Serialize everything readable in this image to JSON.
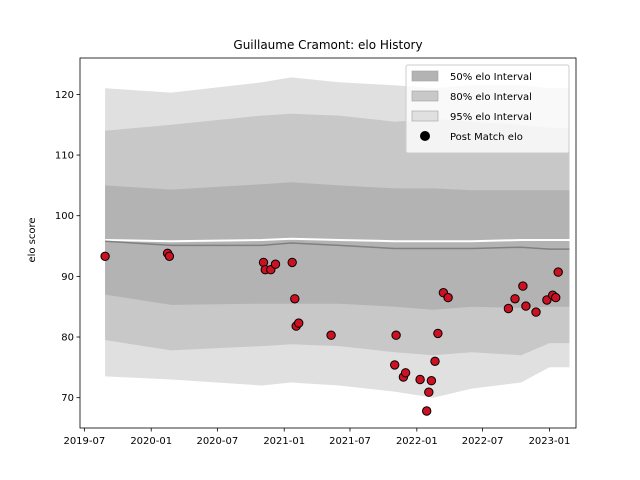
{
  "chart_data": {
    "type": "area",
    "title": "Guillaume Cramont: elo History",
    "xlabel": "",
    "ylabel": "elo score",
    "x_type": "date",
    "xlim": [
      "2019-06-19",
      "2023-03-15"
    ],
    "ylim": [
      65,
      126
    ],
    "x_ticks": [
      {
        "date": "2019-07-01",
        "label": "2019-07"
      },
      {
        "date": "2020-01-01",
        "label": "2020-01"
      },
      {
        "date": "2020-07-01",
        "label": "2020-07"
      },
      {
        "date": "2021-01-01",
        "label": "2021-01"
      },
      {
        "date": "2021-07-01",
        "label": "2021-07"
      },
      {
        "date": "2022-01-01",
        "label": "2022-01"
      },
      {
        "date": "2022-07-01",
        "label": "2022-07"
      },
      {
        "date": "2023-01-01",
        "label": "2023-01"
      }
    ],
    "y_ticks": [
      70,
      80,
      90,
      100,
      110,
      120
    ],
    "grid": false,
    "legend": {
      "position": "top-right",
      "entries": [
        {
          "label": "50% elo Interval",
          "color": "#b3b3b3",
          "kind": "patch"
        },
        {
          "label": "80% elo Interval",
          "color": "#c8c8c8",
          "kind": "patch"
        },
        {
          "label": "95% elo Interval",
          "color": "#e0e0e0",
          "kind": "patch"
        },
        {
          "label": "Post Match elo",
          "color": "#000000",
          "kind": "marker"
        }
      ]
    },
    "bands": {
      "x": [
        "2019-08-27",
        "2020-02-25",
        "2020-11-01",
        "2021-01-20",
        "2021-06-01",
        "2021-11-01",
        "2022-02-15",
        "2022-06-01",
        "2022-10-15",
        "2023-01-01",
        "2023-02-25"
      ],
      "band95": {
        "lower": [
          73.5,
          73.0,
          72.0,
          72.5,
          72.0,
          71.0,
          70.0,
          71.5,
          72.5,
          75.0,
          75.0
        ],
        "upper": [
          121.0,
          120.3,
          122.0,
          122.8,
          122.0,
          121.5,
          121.0,
          121.5,
          121.5,
          121.0,
          121.0
        ]
      },
      "band80": {
        "lower": [
          79.5,
          77.8,
          78.5,
          78.8,
          78.5,
          77.5,
          77.0,
          77.5,
          77.0,
          79.0,
          79.0
        ],
        "upper": [
          114.0,
          115.0,
          116.5,
          116.8,
          116.5,
          115.5,
          116.0,
          115.5,
          115.0,
          114.5,
          114.5
        ]
      },
      "band50": {
        "lower": [
          87.0,
          85.3,
          85.5,
          85.5,
          85.5,
          85.0,
          84.5,
          85.0,
          84.8,
          85.0,
          85.0
        ],
        "upper": [
          105.0,
          104.3,
          105.2,
          105.5,
          105.0,
          104.5,
          104.5,
          104.2,
          104.2,
          104.2,
          104.2
        ]
      },
      "center_line": [
        95.8,
        95.1,
        95.1,
        95.5,
        95.1,
        94.6,
        94.6,
        94.6,
        94.8,
        94.5,
        94.5
      ],
      "white_line": [
        96.0,
        95.8,
        96.0,
        96.2,
        96.0,
        95.8,
        95.8,
        95.8,
        96.0,
        96.0,
        96.0
      ]
    },
    "series": [
      {
        "name": "Post Match elo",
        "color": "#cc1122",
        "points": [
          {
            "x": "2019-08-27",
            "y": 93.3
          },
          {
            "x": "2020-02-15",
            "y": 93.8
          },
          {
            "x": "2020-02-20",
            "y": 93.3
          },
          {
            "x": "2020-11-05",
            "y": 92.3
          },
          {
            "x": "2020-11-10",
            "y": 91.1
          },
          {
            "x": "2020-11-25",
            "y": 91.1
          },
          {
            "x": "2020-12-08",
            "y": 92.0
          },
          {
            "x": "2021-01-23",
            "y": 92.3
          },
          {
            "x": "2021-01-30",
            "y": 86.3
          },
          {
            "x": "2021-02-03",
            "y": 81.8
          },
          {
            "x": "2021-02-10",
            "y": 82.3
          },
          {
            "x": "2021-05-10",
            "y": 80.3
          },
          {
            "x": "2021-11-01",
            "y": 75.4
          },
          {
            "x": "2021-11-05",
            "y": 80.3
          },
          {
            "x": "2021-11-25",
            "y": 73.4
          },
          {
            "x": "2021-12-01",
            "y": 74.1
          },
          {
            "x": "2022-01-10",
            "y": 73.0
          },
          {
            "x": "2022-01-28",
            "y": 67.8
          },
          {
            "x": "2022-02-03",
            "y": 70.9
          },
          {
            "x": "2022-02-10",
            "y": 72.8
          },
          {
            "x": "2022-02-20",
            "y": 76.0
          },
          {
            "x": "2022-02-28",
            "y": 80.6
          },
          {
            "x": "2022-03-15",
            "y": 87.3
          },
          {
            "x": "2022-03-28",
            "y": 86.5
          },
          {
            "x": "2022-09-10",
            "y": 84.7
          },
          {
            "x": "2022-09-28",
            "y": 86.3
          },
          {
            "x": "2022-10-20",
            "y": 88.4
          },
          {
            "x": "2022-10-28",
            "y": 85.1
          },
          {
            "x": "2022-11-25",
            "y": 84.1
          },
          {
            "x": "2022-12-25",
            "y": 86.1
          },
          {
            "x": "2023-01-10",
            "y": 86.9
          },
          {
            "x": "2023-01-18",
            "y": 86.5
          },
          {
            "x": "2023-01-25",
            "y": 90.7
          }
        ]
      }
    ]
  }
}
